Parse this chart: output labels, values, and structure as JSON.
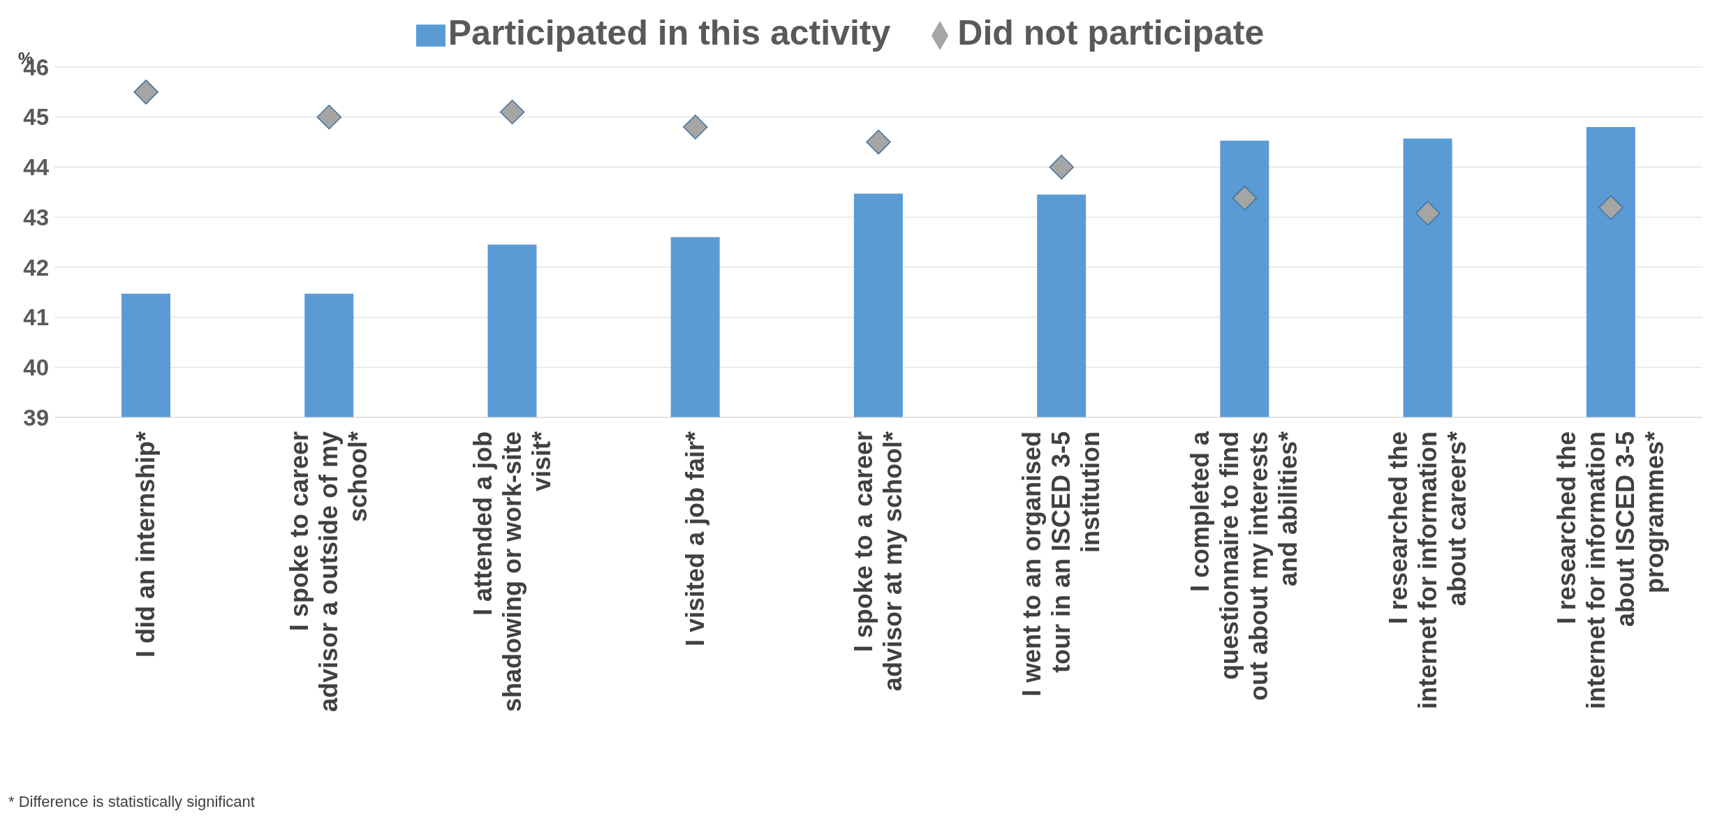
{
  "chart_data": {
    "type": "bar",
    "ylabel": "%",
    "categories": [
      "I did an internship*",
      "I spoke to career advisor a outside of my school*",
      "I attended a job shadowing or work-site visit*",
      "I visited a job fair*",
      "I spoke to a career advisor at my school*",
      "I went to an organised tour in an  ISCED 3-5 institution",
      "I completed a questionnaire to find out about my interests and abilities*",
      "I researched the internet for information about careers*",
      "I researched the internet for information about ISCED 3-5 programmes*"
    ],
    "series": [
      {
        "name": "Participated in this activity",
        "type": "bar",
        "color": "#5b9bd5",
        "values": [
          41.47,
          41.47,
          42.45,
          42.6,
          43.47,
          43.45,
          44.53,
          44.57,
          44.8
        ]
      },
      {
        "name": "Did not participate",
        "type": "scatter",
        "color": "#a5a5a5",
        "values": [
          45.5,
          45.0,
          45.1,
          44.8,
          44.5,
          44.0,
          43.38,
          43.08,
          43.19
        ]
      }
    ],
    "ylim": [
      39,
      46
    ],
    "yticks": [
      39,
      40,
      41,
      42,
      43,
      44,
      45,
      46
    ],
    "grid": "y",
    "legend": "top",
    "marker": "diamond",
    "annotations": [
      "* Difference is statistically significant"
    ]
  }
}
